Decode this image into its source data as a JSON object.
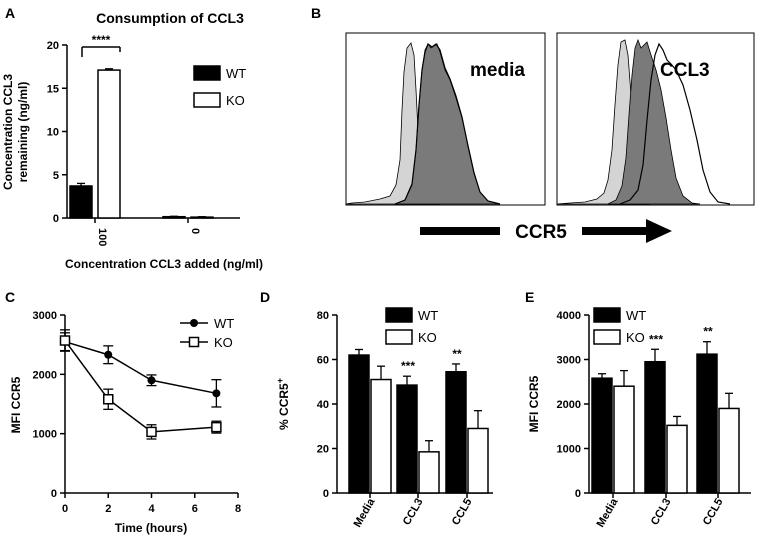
{
  "colors": {
    "black": "#000000",
    "white": "#ffffff",
    "light_gray": "#d4d4d4",
    "dark_gray": "#7a7a7a"
  },
  "chart_data": [
    {
      "panel": "A",
      "type": "bar",
      "title": "Consumption of CCL3",
      "xlabel": "Concentration CCL3 added (ng/ml)",
      "ylabel": "Concentration CCL3 remaining (ng/ml)",
      "ylabel_lines": [
        "Concentration CCL3",
        "remaining (ng/ml)"
      ],
      "categories": [
        "100",
        "0"
      ],
      "series": [
        {
          "name": "WT",
          "values": [
            3.7,
            0.15
          ],
          "errors": [
            0.3,
            0.05
          ],
          "fill": "#000000"
        },
        {
          "name": "KO",
          "values": [
            17.1,
            0.1
          ],
          "errors": [
            0.15,
            0.05
          ],
          "fill": "#ffffff"
        }
      ],
      "ylim": [
        0,
        20
      ],
      "yticks": [
        0,
        5,
        10,
        15,
        20
      ],
      "significance": "****",
      "legend": "right"
    },
    {
      "panel": "B",
      "type": "histogram-overlay",
      "xlabel": "CCR5",
      "subpanels": [
        "media",
        "CCL3"
      ]
    },
    {
      "panel": "C",
      "type": "line",
      "xlabel": "Time (hours)",
      "ylabel": "MFI CCR5",
      "x": [
        0,
        2,
        4,
        7
      ],
      "series": [
        {
          "name": "WT",
          "values": [
            2550,
            2330,
            1900,
            1680
          ],
          "errors": [
            150,
            150,
            90,
            230
          ],
          "marker": "filled-circle"
        },
        {
          "name": "KO",
          "values": [
            2570,
            1580,
            1030,
            1110
          ],
          "errors": [
            180,
            170,
            120,
            100
          ],
          "marker": "open-square"
        }
      ],
      "xlim": [
        0,
        8
      ],
      "xticks": [
        0,
        2,
        4,
        6,
        8
      ],
      "ylim": [
        0,
        3000
      ],
      "yticks": [
        0,
        1000,
        2000,
        3000
      ],
      "legend": "top-right"
    },
    {
      "panel": "D",
      "type": "bar",
      "ylabel": "% CCR5",
      "ylabel_sup": "+",
      "categories": [
        "Media",
        "CCL3",
        "CCL5"
      ],
      "series": [
        {
          "name": "WT",
          "values": [
            62,
            48.5,
            54.5
          ],
          "errors": [
            2.5,
            4,
            3.5
          ],
          "fill": "#000000"
        },
        {
          "name": "KO",
          "values": [
            51,
            18.5,
            29
          ],
          "errors": [
            6,
            5,
            8
          ],
          "fill": "#ffffff"
        }
      ],
      "ylim": [
        0,
        80
      ],
      "yticks": [
        0,
        20,
        40,
        60,
        80
      ],
      "significance": [
        "",
        "***",
        "**"
      ],
      "legend": "top"
    },
    {
      "panel": "E",
      "type": "bar",
      "ylabel": "MFI CCR5",
      "categories": [
        "Media",
        "CCL3",
        "CCL5"
      ],
      "series": [
        {
          "name": "WT",
          "values": [
            2580,
            2950,
            3120
          ],
          "errors": [
            100,
            280,
            280
          ],
          "fill": "#000000"
        },
        {
          "name": "KO",
          "values": [
            2400,
            1520,
            1900
          ],
          "errors": [
            350,
            200,
            340
          ],
          "fill": "#ffffff"
        }
      ],
      "ylim": [
        0,
        4000
      ],
      "yticks": [
        0,
        1000,
        2000,
        3000,
        4000
      ],
      "significance": [
        "",
        "***",
        "**"
      ],
      "legend": "top"
    }
  ]
}
